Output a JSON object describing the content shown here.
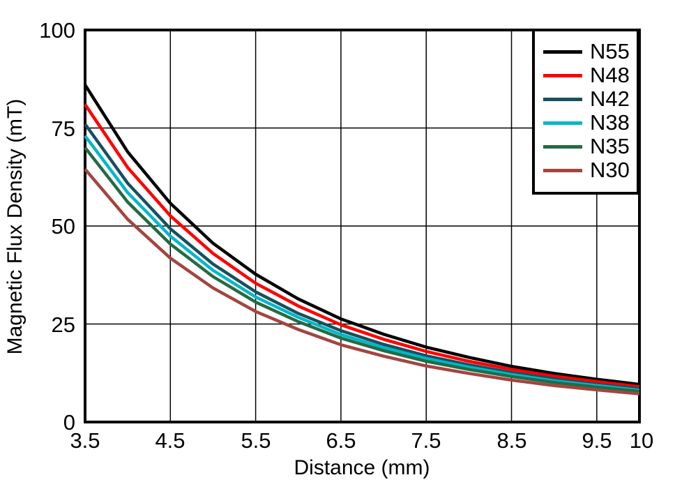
{
  "chart_data": {
    "type": "line",
    "title": "",
    "xlabel": "Distance (mm)",
    "ylabel": "Magnetic Flux Density (mT)",
    "xlim": [
      3.5,
      10
    ],
    "ylim": [
      0,
      100
    ],
    "grid": true,
    "legend_position": "top-right",
    "frame_color": "#000000",
    "gridline_color": "#000000",
    "x": [
      3.5,
      4.0,
      4.5,
      5.0,
      5.5,
      6.0,
      6.5,
      7.0,
      7.5,
      8.0,
      8.5,
      9.0,
      9.5,
      10.0
    ],
    "x_ticks": [
      {
        "value": 3.5,
        "label": "3.5",
        "gridline": false
      },
      {
        "value": 4.5,
        "label": "4.5",
        "gridline": true
      },
      {
        "value": 5.5,
        "label": "5.5",
        "gridline": true
      },
      {
        "value": 6.5,
        "label": "6.5",
        "gridline": true
      },
      {
        "value": 7.5,
        "label": "7.5",
        "gridline": true
      },
      {
        "value": 8.5,
        "label": "8.5",
        "gridline": true
      },
      {
        "value": 9.5,
        "label": "9.5",
        "gridline": true
      },
      {
        "value": 10,
        "label": "10",
        "gridline": false
      }
    ],
    "y_ticks": [
      {
        "value": 0,
        "label": "0",
        "gridline": false
      },
      {
        "value": 25,
        "label": "25",
        "gridline": true
      },
      {
        "value": 50,
        "label": "50",
        "gridline": true
      },
      {
        "value": 75,
        "label": "75",
        "gridline": true
      },
      {
        "value": 100,
        "label": "100",
        "gridline": false
      }
    ],
    "series": [
      {
        "name": "N55",
        "color": "#000000",
        "values": [
          86.0,
          68.9,
          55.8,
          45.6,
          37.7,
          31.4,
          26.3,
          22.4,
          19.1,
          16.5,
          14.2,
          12.4,
          10.9,
          9.6
        ]
      },
      {
        "name": "N48",
        "color": "#FF0000",
        "values": [
          81.0,
          64.9,
          52.6,
          43.0,
          35.4,
          29.6,
          24.8,
          21.1,
          18.0,
          15.5,
          13.4,
          11.7,
          10.3,
          9.0
        ]
      },
      {
        "name": "N42",
        "color": "#17505F",
        "values": [
          76.0,
          60.9,
          49.3,
          40.3,
          33.2,
          27.7,
          23.3,
          19.8,
          16.9,
          14.6,
          12.6,
          11.0,
          9.6,
          8.5
        ]
      },
      {
        "name": "N38",
        "color": "#00B7C8",
        "values": [
          73.0,
          58.5,
          47.4,
          38.7,
          31.9,
          26.7,
          22.3,
          19.0,
          16.2,
          14.0,
          12.1,
          10.5,
          9.3,
          8.1
        ]
      },
      {
        "name": "N35",
        "color": "#256A44",
        "values": [
          70.0,
          56.1,
          45.4,
          37.1,
          30.6,
          25.6,
          21.4,
          18.2,
          15.5,
          13.4,
          11.6,
          10.1,
          8.9,
          7.8
        ]
      },
      {
        "name": "N30",
        "color": "#A34540",
        "values": [
          64.5,
          51.7,
          41.8,
          34.2,
          28.2,
          23.6,
          19.7,
          16.8,
          14.3,
          12.4,
          10.7,
          9.3,
          8.2,
          7.2
        ]
      }
    ]
  }
}
